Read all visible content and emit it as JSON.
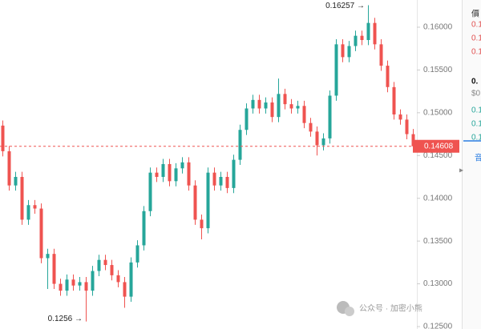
{
  "chart_data": {
    "type": "candlestick",
    "ylim": [
      0.12472,
      0.16318
    ],
    "yticks": [
      {
        "value": 0.125,
        "label": "0.12500"
      },
      {
        "value": 0.13,
        "label": "0.13000"
      },
      {
        "value": 0.135,
        "label": "0.13500"
      },
      {
        "value": 0.14,
        "label": "0.14000"
      },
      {
        "value": 0.145,
        "label": "0.14500"
      },
      {
        "value": 0.15,
        "label": "0.15000"
      },
      {
        "value": 0.155,
        "label": "0.15500"
      },
      {
        "value": 0.16,
        "label": "0.16000"
      }
    ],
    "up_color": "#26a69a",
    "down_color": "#ef5350",
    "open": [
      0.1485,
      0.1455,
      0.1415,
      0.1425,
      0.1375,
      0.1392,
      0.1388,
      0.133,
      0.1335,
      0.13,
      0.1292,
      0.1305,
      0.1298,
      0.1302,
      0.1292,
      0.1315,
      0.1328,
      0.1322,
      0.131,
      0.1302,
      0.1285,
      0.1325,
      0.1345,
      0.1385,
      0.143,
      0.1425,
      0.144,
      0.142,
      0.1435,
      0.1442,
      0.1415,
      0.1375,
      0.1365,
      0.143,
      0.1415,
      0.1425,
      0.1412,
      0.1445,
      0.148,
      0.1505,
      0.1515,
      0.1505,
      0.1512,
      0.1495,
      0.1522,
      0.151,
      0.1505,
      0.1508,
      0.1488,
      0.1478,
      0.1462,
      0.147,
      0.152,
      0.158,
      0.1565,
      0.1578,
      0.159,
      0.1585,
      0.1605,
      0.158,
      0.1555,
      0.153,
      0.1498,
      0.1492,
      0.1475
    ],
    "high": [
      0.1491,
      0.1461,
      0.1431,
      0.1431,
      0.1398,
      0.1398,
      0.1394,
      0.1341,
      0.1341,
      0.1306,
      0.1311,
      0.1311,
      0.1308,
      0.1308,
      0.1321,
      0.1334,
      0.1334,
      0.1328,
      0.1316,
      0.1308,
      0.1331,
      0.1351,
      0.1391,
      0.1436,
      0.1436,
      0.1446,
      0.1446,
      0.1441,
      0.1448,
      0.1448,
      0.1421,
      0.1381,
      0.1436,
      0.1436,
      0.1431,
      0.1431,
      0.1451,
      0.1486,
      0.1511,
      0.1521,
      0.1521,
      0.1518,
      0.1518,
      0.154,
      0.1528,
      0.1516,
      0.1514,
      0.1514,
      0.1494,
      0.1484,
      0.1476,
      0.1526,
      0.1586,
      0.1586,
      0.1584,
      0.1596,
      0.1596,
      0.16257,
      0.1611,
      0.1586,
      0.1561,
      0.1536,
      0.1504,
      0.1498,
      0.1481
    ],
    "low": [
      0.1449,
      0.1409,
      0.1409,
      0.1369,
      0.1369,
      0.1382,
      0.1324,
      0.1294,
      0.1294,
      0.1286,
      0.1286,
      0.1292,
      0.1292,
      0.1256,
      0.1286,
      0.1309,
      0.1316,
      0.1304,
      0.1296,
      0.1272,
      0.1279,
      0.1319,
      0.1339,
      0.1379,
      0.1419,
      0.1419,
      0.1414,
      0.1414,
      0.1429,
      0.1409,
      0.1369,
      0.1352,
      0.1359,
      0.1409,
      0.1409,
      0.1406,
      0.1406,
      0.1439,
      0.1474,
      0.1499,
      0.1499,
      0.1499,
      0.1489,
      0.1489,
      0.1504,
      0.1499,
      0.1499,
      0.1482,
      0.1472,
      0.145,
      0.1456,
      0.1464,
      0.1514,
      0.1559,
      0.1559,
      0.1572,
      0.1579,
      0.1579,
      0.1574,
      0.1549,
      0.1524,
      0.1492,
      0.1486,
      0.1469,
      0.1455
    ],
    "close": [
      0.1455,
      0.1415,
      0.1425,
      0.1375,
      0.1392,
      0.1388,
      0.133,
      0.1335,
      0.13,
      0.1292,
      0.1305,
      0.1298,
      0.1302,
      0.1292,
      0.1315,
      0.1328,
      0.1322,
      0.131,
      0.1302,
      0.1285,
      0.1325,
      0.1345,
      0.1385,
      0.143,
      0.1425,
      0.144,
      0.142,
      0.1435,
      0.1442,
      0.1415,
      0.1375,
      0.1365,
      0.143,
      0.1415,
      0.1425,
      0.1412,
      0.1445,
      0.148,
      0.1505,
      0.1515,
      0.1505,
      0.1512,
      0.1495,
      0.1522,
      0.151,
      0.1505,
      0.1508,
      0.1488,
      0.1478,
      0.1462,
      0.147,
      0.152,
      0.158,
      0.1565,
      0.1578,
      0.159,
      0.1585,
      0.1605,
      0.158,
      0.1555,
      0.153,
      0.1498,
      0.1492,
      0.1475,
      0.14608
    ],
    "last_price": {
      "value": 0.14608,
      "label": "0.14608"
    },
    "high_marker": {
      "value": 0.16257,
      "label": "0.16257 →"
    },
    "low_marker": {
      "value": 0.1256,
      "label": "0.1256 →"
    }
  },
  "side_panel": {
    "header": "價",
    "asks": [
      "0.1",
      "0.1",
      "0.1"
    ],
    "price": "0.",
    "usd": "$0",
    "bids": [
      "0.1",
      "0.1",
      "0.1"
    ],
    "tab": "音"
  },
  "watermark": "公众号 · 加密小熊"
}
